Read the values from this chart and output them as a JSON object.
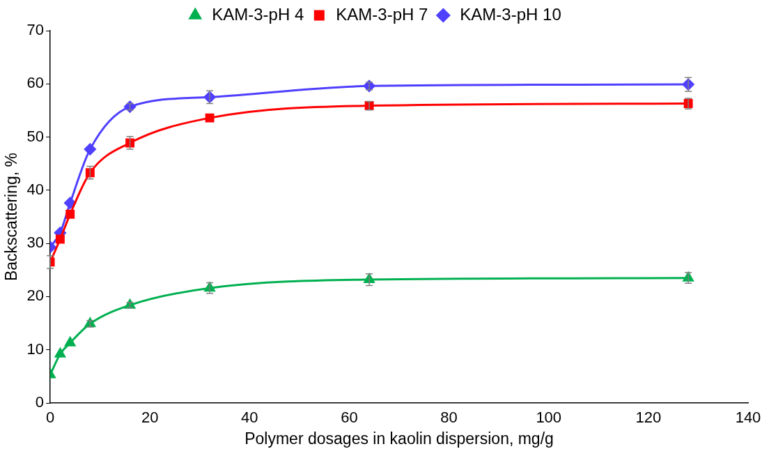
{
  "chart_data": {
    "type": "line",
    "xlabel": "Polymer dosages in kaolin dispersion, mg/g",
    "ylabel": "Backscattering, %",
    "x": [
      0,
      2,
      4,
      8,
      16,
      32,
      64,
      128
    ],
    "xlim": [
      0,
      140
    ],
    "xticks": [
      0,
      20,
      40,
      60,
      80,
      100,
      120,
      140
    ],
    "ylim": [
      0,
      70
    ],
    "yticks": [
      0,
      10,
      20,
      30,
      40,
      50,
      60,
      70
    ],
    "grid": false,
    "legend": "top",
    "series": [
      {
        "name": "KAM-3-pH 4",
        "color": "#00b050",
        "marker": "triangle",
        "values": [
          5.3,
          9.2,
          11.3,
          14.9,
          18.4,
          21.6,
          23.2,
          23.5
        ],
        "errors": [
          null,
          null,
          null,
          0.6,
          0.5,
          1,
          1.1,
          1
        ]
      },
      {
        "name": "KAM-3-pH 7",
        "color": "#ff0000",
        "marker": "square",
        "values": [
          26.5,
          30.8,
          35.5,
          43.3,
          48.9,
          53.6,
          55.9,
          56.3
        ],
        "errors": [
          1.2,
          null,
          null,
          1.2,
          1.2,
          null,
          0.8,
          1
        ]
      },
      {
        "name": "KAM-3-pH 10",
        "color": "#4f3fff",
        "marker": "diamond",
        "values": [
          29.3,
          32,
          37.6,
          47.7,
          55.7,
          57.5,
          59.6,
          59.9
        ],
        "errors": [
          null,
          null,
          null,
          null,
          0.6,
          1.2,
          0.7,
          1.3
        ]
      }
    ]
  }
}
